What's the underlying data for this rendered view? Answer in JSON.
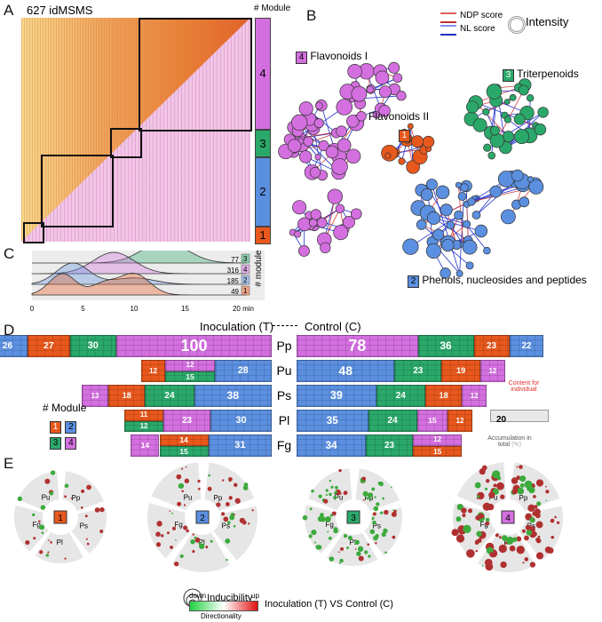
{
  "colors": {
    "module_1": "#e8581c",
    "module_2": "#5b8fe0",
    "module_3": "#2aa86a",
    "module_4": "#d46fe0",
    "heat_low": "#f7f1d6",
    "heat_high": "#e0602a",
    "pink": "#f0c6e6"
  },
  "panel_a": {
    "label": "A",
    "title": "627 idMSMS",
    "module_header": "# Module",
    "modules": [
      "4",
      "3",
      "2",
      "1"
    ]
  },
  "panel_b": {
    "label": "B",
    "legend": {
      "ndp": "NDP score",
      "nl": "NL score",
      "intensity": "Intensity"
    },
    "clusters": [
      {
        "module": "4",
        "name": "Flavonoids I"
      },
      {
        "module": "3",
        "name": "Triterpenoids"
      },
      {
        "module": "1",
        "name": "Flavonoids II"
      },
      {
        "module": "2",
        "name": "Phenols, nucleosides and peptides"
      }
    ]
  },
  "panel_c": {
    "label": "C",
    "axis_title": "# module",
    "ticks": [
      "0",
      "5",
      "10",
      "15",
      "20 min"
    ],
    "rows": [
      {
        "count": "77",
        "module": "3"
      },
      {
        "count": "316",
        "module": "4"
      },
      {
        "count": "185",
        "module": "2"
      },
      {
        "count": "49",
        "module": "1"
      }
    ]
  },
  "panel_d": {
    "label": "D",
    "header_left": "Inoculation (T)",
    "header_right": "Control (C)",
    "module_title": "# Module",
    "legend_modules": [
      "1",
      "2",
      "3",
      "4"
    ],
    "callout": {
      "content": "Content for individual",
      "value": "20",
      "accumulation": "Accumulation in total",
      "unit": "(%)"
    },
    "rows": [
      {
        "species": "Pp",
        "left": [
          {
            "m": "2",
            "v": "26"
          },
          {
            "m": "1",
            "v": "27"
          },
          {
            "m": "3",
            "v": "30"
          },
          {
            "m": "4",
            "v": "100"
          }
        ],
        "right": [
          {
            "m": "4",
            "v": "78"
          },
          {
            "m": "3",
            "v": "36"
          },
          {
            "m": "1",
            "v": "23"
          },
          {
            "m": "2",
            "v": "22"
          }
        ]
      },
      {
        "species": "Pu",
        "left": [
          {
            "m": "1",
            "v": "12"
          },
          {
            "stack": [
              {
                "m": "4",
                "v": "12"
              },
              {
                "m": "3",
                "v": "15"
              }
            ]
          },
          {
            "m": "2",
            "v": "28"
          }
        ],
        "right": [
          {
            "m": "2",
            "v": "48"
          },
          {
            "m": "3",
            "v": "23"
          },
          {
            "m": "1",
            "v": "19"
          },
          {
            "m": "4",
            "v": "12"
          }
        ]
      },
      {
        "species": "Ps",
        "left": [
          {
            "m": "4",
            "v": "13"
          },
          {
            "m": "1",
            "v": "18"
          },
          {
            "m": "3",
            "v": "24"
          },
          {
            "m": "2",
            "v": "38"
          }
        ],
        "right": [
          {
            "m": "2",
            "v": "39"
          },
          {
            "m": "3",
            "v": "24"
          },
          {
            "m": "1",
            "v": "18"
          },
          {
            "m": "4",
            "v": "12"
          }
        ]
      },
      {
        "species": "Pl",
        "left": [
          {
            "stack": [
              {
                "m": "1",
                "v": "11"
              },
              {
                "m": "3",
                "v": "12"
              }
            ]
          },
          {
            "m": "4",
            "v": "23"
          },
          {
            "m": "2",
            "v": "30"
          }
        ],
        "right": [
          {
            "m": "2",
            "v": "35"
          },
          {
            "m": "3",
            "v": "24"
          },
          {
            "m": "4",
            "v": "15"
          },
          {
            "m": "1",
            "v": "12"
          }
        ]
      },
      {
        "species": "Fg",
        "left": [
          {
            "m": "4",
            "v": "14"
          },
          {
            "stack": [
              {
                "m": "1",
                "v": "14"
              },
              {
                "m": "3",
                "v": "15"
              }
            ]
          },
          {
            "m": "2",
            "v": "31"
          }
        ],
        "right": [
          {
            "m": "2",
            "v": "34"
          },
          {
            "m": "3",
            "v": "23"
          },
          {
            "stack": [
              {
                "m": "4",
                "v": "12"
              },
              {
                "m": "1",
                "v": "15"
              }
            ]
          }
        ]
      }
    ]
  },
  "panel_e": {
    "label": "E",
    "sectors": [
      "Pu",
      "Pp",
      "Ps",
      "Pl",
      "Fg"
    ],
    "modules": [
      "1",
      "2",
      "3",
      "4"
    ],
    "legend": {
      "size": "Inducibility",
      "down": "down",
      "up": "up",
      "direction": "Directionality",
      "comparison": "Inoculation (T) VS Control (C)"
    }
  }
}
